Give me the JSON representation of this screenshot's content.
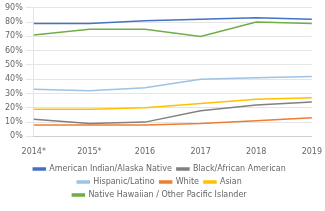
{
  "chart_data": {
    "type": "line",
    "categories": [
      "2014*",
      "2015*",
      "2016",
      "2017",
      "2018",
      "2019"
    ],
    "series": [
      {
        "name": "American Indian/Alaska Native",
        "color": "#4472C4",
        "values": [
          79,
          79,
          81,
          82,
          83,
          82
        ]
      },
      {
        "name": "Black/African American",
        "color": "#808080",
        "values": [
          12,
          9,
          10,
          18,
          22,
          24
        ]
      },
      {
        "name": "Hispanic/Latino",
        "color": "#9DC3E6",
        "values": [
          33,
          32,
          34,
          40,
          41,
          42
        ]
      },
      {
        "name": "White",
        "color": "#ED7D31",
        "values": [
          8,
          8,
          8,
          9,
          11,
          13
        ]
      },
      {
        "name": "Asian",
        "color": "#FFC000",
        "values": [
          19,
          19,
          20,
          23,
          26,
          27
        ]
      },
      {
        "name": "Native Hawaiian / Other Pacific Islander",
        "color": "#70AD47",
        "values": [
          71,
          75,
          75,
          70,
          80,
          79
        ]
      }
    ],
    "ylim": [
      0,
      90
    ],
    "yticks": [
      {
        "value": 0,
        "label": "0%"
      },
      {
        "value": 10,
        "label": "10%"
      },
      {
        "value": 20,
        "label": "20%"
      },
      {
        "value": 30,
        "label": "30%"
      },
      {
        "value": 40,
        "label": "40%"
      },
      {
        "value": 50,
        "label": "50%"
      },
      {
        "value": 60,
        "label": "60%"
      },
      {
        "value": 70,
        "label": "70%"
      },
      {
        "value": 80,
        "label": "80%"
      },
      {
        "value": 90,
        "label": "90%"
      }
    ],
    "grid": true,
    "legend": "bottom"
  }
}
